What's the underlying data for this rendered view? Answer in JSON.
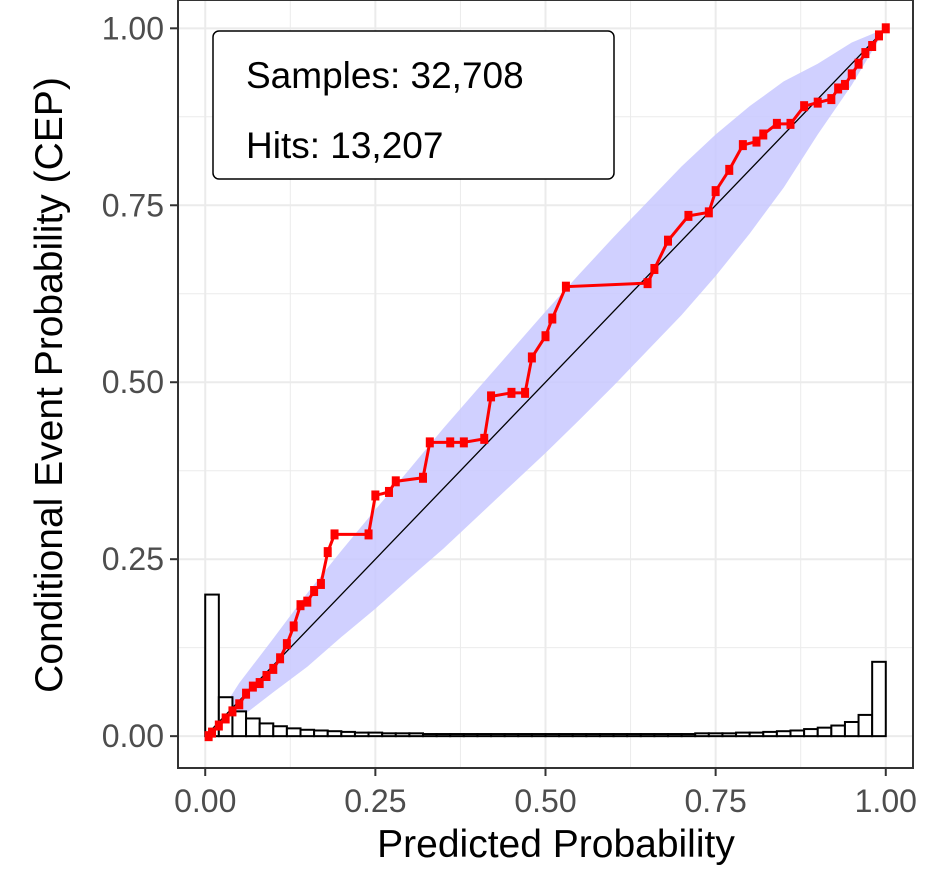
{
  "chart_data": {
    "type": "line",
    "xlabel": "Predicted Probability",
    "ylabel": "Conditional Event Probability (CEP)",
    "xlim": [
      -0.04,
      1.04
    ],
    "ylim": [
      -0.045,
      1.04
    ],
    "x_ticks": [
      0,
      0.25,
      0.5,
      0.75,
      1
    ],
    "y_ticks": [
      0,
      0.25,
      0.5,
      0.75,
      1
    ],
    "x_tick_labels": [
      "0.00",
      "0.25",
      "0.50",
      "0.75",
      "1.00"
    ],
    "y_tick_labels": [
      "0.00",
      "0.25",
      "0.50",
      "0.75",
      "1.00"
    ],
    "grid": true,
    "legend": {
      "samples_label": "Samples: 32,708",
      "hits_label": "Hits: 13,207",
      "placement": "top-left"
    },
    "colors": {
      "cep_curve": "#ff0000",
      "confidence_band": "#c8c8ff",
      "diagonal": "#000000",
      "grid": "#ebebeb",
      "histogram_fill": "#ffffff",
      "histogram_stroke": "#000000"
    },
    "cep_curve": {
      "x": [
        0.005,
        0.01,
        0.02,
        0.03,
        0.04,
        0.05,
        0.06,
        0.07,
        0.08,
        0.09,
        0.1,
        0.11,
        0.12,
        0.13,
        0.14,
        0.15,
        0.16,
        0.17,
        0.18,
        0.19,
        0.24,
        0.25,
        0.27,
        0.28,
        0.32,
        0.33,
        0.36,
        0.38,
        0.41,
        0.42,
        0.45,
        0.47,
        0.48,
        0.5,
        0.51,
        0.53,
        0.65,
        0.66,
        0.68,
        0.71,
        0.74,
        0.75,
        0.77,
        0.79,
        0.81,
        0.82,
        0.84,
        0.86,
        0.88,
        0.9,
        0.92,
        0.93,
        0.94,
        0.95,
        0.96,
        0.97,
        0.98,
        0.99,
        1.0
      ],
      "y": [
        0.0,
        0.005,
        0.015,
        0.025,
        0.035,
        0.045,
        0.06,
        0.07,
        0.075,
        0.085,
        0.095,
        0.11,
        0.13,
        0.155,
        0.185,
        0.19,
        0.205,
        0.215,
        0.26,
        0.285,
        0.285,
        0.34,
        0.345,
        0.36,
        0.365,
        0.415,
        0.415,
        0.415,
        0.42,
        0.48,
        0.485,
        0.485,
        0.535,
        0.565,
        0.59,
        0.635,
        0.64,
        0.66,
        0.7,
        0.735,
        0.74,
        0.77,
        0.8,
        0.835,
        0.84,
        0.85,
        0.865,
        0.865,
        0.89,
        0.895,
        0.9,
        0.915,
        0.92,
        0.935,
        0.95,
        0.965,
        0.975,
        0.99,
        1.0
      ]
    },
    "confidence_band": {
      "x": [
        0.0,
        0.05,
        0.1,
        0.15,
        0.2,
        0.25,
        0.3,
        0.35,
        0.4,
        0.45,
        0.5,
        0.55,
        0.6,
        0.65,
        0.7,
        0.75,
        0.8,
        0.85,
        0.9,
        0.95,
        1.0
      ],
      "lower": [
        0.0,
        0.025,
        0.062,
        0.098,
        0.14,
        0.18,
        0.223,
        0.265,
        0.31,
        0.355,
        0.4,
        0.447,
        0.495,
        0.545,
        0.595,
        0.65,
        0.71,
        0.775,
        0.85,
        0.92,
        1.0
      ],
      "upper": [
        0.0,
        0.075,
        0.138,
        0.202,
        0.262,
        0.32,
        0.377,
        0.435,
        0.49,
        0.545,
        0.6,
        0.653,
        0.705,
        0.755,
        0.805,
        0.85,
        0.89,
        0.925,
        0.95,
        0.98,
        1.0
      ]
    },
    "histogram": {
      "bin_edges": [
        0.0,
        0.02,
        0.04,
        0.06,
        0.08,
        0.1,
        0.12,
        0.14,
        0.16,
        0.18,
        0.2,
        0.22,
        0.24,
        0.26,
        0.28,
        0.3,
        0.32,
        0.34,
        0.36,
        0.38,
        0.4,
        0.42,
        0.44,
        0.46,
        0.48,
        0.5,
        0.52,
        0.54,
        0.56,
        0.58,
        0.6,
        0.62,
        0.64,
        0.66,
        0.68,
        0.7,
        0.72,
        0.74,
        0.76,
        0.78,
        0.8,
        0.82,
        0.84,
        0.86,
        0.88,
        0.9,
        0.92,
        0.94,
        0.96,
        0.98,
        1.0
      ],
      "heights": [
        0.2,
        0.055,
        0.035,
        0.025,
        0.018,
        0.014,
        0.011,
        0.009,
        0.008,
        0.007,
        0.006,
        0.005,
        0.005,
        0.004,
        0.004,
        0.004,
        0.003,
        0.003,
        0.003,
        0.003,
        0.003,
        0.003,
        0.003,
        0.003,
        0.003,
        0.003,
        0.003,
        0.003,
        0.003,
        0.003,
        0.003,
        0.003,
        0.003,
        0.003,
        0.003,
        0.003,
        0.004,
        0.004,
        0.004,
        0.005,
        0.005,
        0.006,
        0.007,
        0.008,
        0.01,
        0.012,
        0.015,
        0.02,
        0.03,
        0.105
      ]
    }
  }
}
